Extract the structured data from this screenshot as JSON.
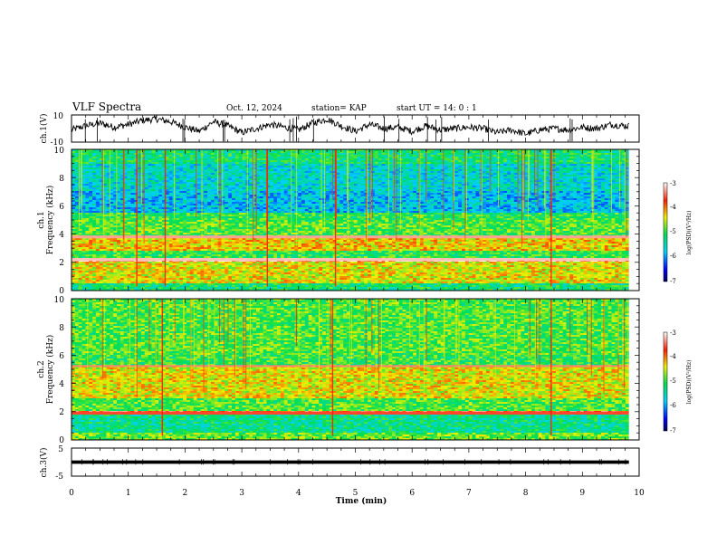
{
  "header": {
    "title": "VLF Spectra",
    "date": "Oct. 12, 2024",
    "station": "station= KAP",
    "start": "start  UT =   14: 0  : 1"
  },
  "chart_data": [
    {
      "type": "line",
      "panel": "ch1-waveform",
      "ylabel": "ch.1(V)",
      "ylim": [
        -10,
        10
      ],
      "yticks": [
        "10",
        "-10"
      ],
      "xlim": [
        0,
        10
      ],
      "x": [
        0,
        0.25,
        0.5,
        0.75,
        1.0,
        1.25,
        1.5,
        1.75,
        2.0,
        2.25,
        2.5,
        2.75,
        3.0,
        3.25,
        3.5,
        3.75,
        4.0,
        4.25,
        4.5,
        4.75,
        5.0,
        5.25,
        5.5,
        5.75,
        6.0,
        6.25,
        6.5,
        6.75,
        7.0,
        7.25,
        7.5,
        7.75,
        8.0,
        8.25,
        8.5,
        8.75,
        9.0,
        9.25,
        9.5,
        9.75
      ],
      "values": [
        -1,
        2,
        4,
        1,
        3,
        6,
        7,
        5,
        1,
        -2,
        5,
        2,
        -3,
        0,
        3,
        1,
        -1,
        4,
        7,
        2,
        -2,
        3,
        0,
        1,
        -2,
        2,
        -1,
        0,
        1,
        0,
        -3,
        -1,
        -4,
        -1,
        0,
        -1,
        1,
        0,
        3,
        2
      ]
    },
    {
      "type": "heatmap",
      "panel": "ch1-spectrogram",
      "ylabel_top": "ch.1",
      "ylabel": "Frequency  (kHz)",
      "ylim": [
        0,
        10
      ],
      "yticks": [
        "0",
        "2",
        "4",
        "6",
        "8",
        "10"
      ],
      "xlim": [
        0,
        10
      ],
      "colorbar": {
        "label": "log(PSD)(V²/Hz)",
        "range": [
          -7,
          -3
        ],
        "ticks": [
          "-3",
          "-4",
          "-5",
          "-6",
          "-7"
        ]
      },
      "bands_log_psd": [
        {
          "f_khz": [
            9.0,
            10.0
          ],
          "level": -5.2
        },
        {
          "f_khz": [
            7.0,
            9.0
          ],
          "level": -5.6
        },
        {
          "f_khz": [
            5.5,
            7.0
          ],
          "level": -5.8
        },
        {
          "f_khz": [
            5.0,
            5.5
          ],
          "level": -5.0
        },
        {
          "f_khz": [
            4.0,
            5.0
          ],
          "level": -4.9
        },
        {
          "f_khz": [
            3.7,
            3.9
          ],
          "level": -3.3
        },
        {
          "f_khz": [
            2.8,
            3.7
          ],
          "level": -4.3
        },
        {
          "f_khz": [
            2.1,
            2.3
          ],
          "level": -3.2
        },
        {
          "f_khz": [
            0.5,
            2.1
          ],
          "level": -4.4
        },
        {
          "f_khz": [
            0.0,
            0.5
          ],
          "level": -5.2
        }
      ]
    },
    {
      "type": "heatmap",
      "panel": "ch2-spectrogram",
      "ylabel_top": "ch.2",
      "ylabel": "Frequency  (kHz)",
      "ylim": [
        0,
        10
      ],
      "yticks": [
        "0",
        "2",
        "4",
        "6",
        "8",
        "10"
      ],
      "xlim": [
        0,
        10
      ],
      "colorbar": {
        "label": "log(PSD)(V²/Hz)",
        "range": [
          -7,
          -3
        ],
        "ticks": [
          "-3",
          "-4",
          "-5",
          "-6",
          "-7"
        ]
      },
      "bands_log_psd": [
        {
          "f_khz": [
            6.0,
            10.0
          ],
          "level": -4.9
        },
        {
          "f_khz": [
            5.2,
            5.3
          ],
          "level": -3.4
        },
        {
          "f_khz": [
            3.0,
            5.2
          ],
          "level": -4.4
        },
        {
          "f_khz": [
            2.0,
            3.0
          ],
          "level": -4.9
        },
        {
          "f_khz": [
            1.8,
            2.0
          ],
          "level": -3.6
        },
        {
          "f_khz": [
            0.5,
            1.8
          ],
          "level": -5.3
        },
        {
          "f_khz": [
            0.0,
            0.5
          ],
          "level": -4.8
        }
      ]
    },
    {
      "type": "line",
      "panel": "ch3-waveform",
      "ylabel": "ch.3(V)",
      "ylim": [
        -5,
        5
      ],
      "yticks": [
        "5",
        "-5"
      ],
      "xlim": [
        0,
        10
      ],
      "band": [
        -0.6,
        0.6
      ]
    }
  ],
  "x_axis": {
    "label": "Time  (min)",
    "ticks": [
      "0",
      "1",
      "2",
      "3",
      "4",
      "5",
      "6",
      "7",
      "8",
      "9",
      "10"
    ]
  }
}
